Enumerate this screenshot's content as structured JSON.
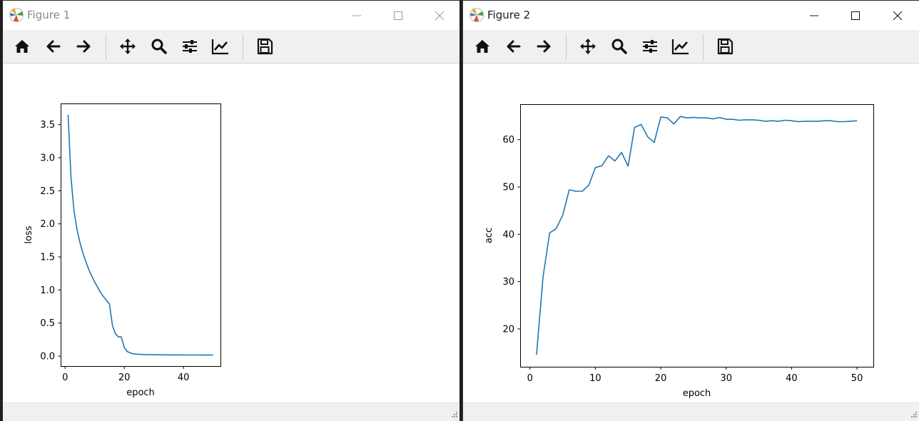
{
  "windows": [
    {
      "title": "Figure 1",
      "toolbar": [
        "home-icon",
        "back-icon",
        "forward-icon",
        "pan-icon",
        "zoom-icon",
        "configure-subplots-icon",
        "edit-axis-icon",
        "save-icon"
      ]
    },
    {
      "title": "Figure 2",
      "toolbar": [
        "home-icon",
        "back-icon",
        "forward-icon",
        "pan-icon",
        "zoom-icon",
        "configure-subplots-icon",
        "edit-axis-icon",
        "save-icon"
      ]
    }
  ],
  "colors": {
    "line": "#1f77b4",
    "toolbar_bg": "#f0f0f0",
    "title_active": "#1a1a1a",
    "title_inactive": "#8a8a8a"
  },
  "chart_data": [
    {
      "type": "line",
      "xlabel": "epoch",
      "ylabel": "loss",
      "xlim": [
        -1.5,
        52.5
      ],
      "ylim": [
        -0.15,
        3.82
      ],
      "xticks": [
        0,
        20,
        40
      ],
      "xtick_labels": [
        "0",
        "20",
        "40"
      ],
      "yticks": [
        0.0,
        0.5,
        1.0,
        1.5,
        2.0,
        2.5,
        3.0,
        3.5
      ],
      "ytick_labels": [
        "0.0",
        "0.5",
        "1.0",
        "1.5",
        "2.0",
        "2.5",
        "3.0",
        "3.5"
      ],
      "x": [
        1,
        2,
        3,
        4,
        5,
        6,
        7,
        8,
        9,
        10,
        11,
        12,
        13,
        14,
        15,
        16,
        17,
        18,
        19,
        20,
        21,
        22,
        23,
        24,
        25,
        26,
        27,
        28,
        29,
        30,
        31,
        32,
        33,
        34,
        35,
        36,
        37,
        38,
        39,
        40,
        41,
        42,
        43,
        44,
        45,
        46,
        47,
        48,
        49,
        50
      ],
      "y": [
        3.65,
        2.7,
        2.2,
        1.92,
        1.72,
        1.56,
        1.43,
        1.31,
        1.21,
        1.12,
        1.04,
        0.96,
        0.9,
        0.84,
        0.79,
        0.46,
        0.34,
        0.29,
        0.29,
        0.13,
        0.07,
        0.05,
        0.035,
        0.03,
        0.028,
        0.026,
        0.024,
        0.023,
        0.022,
        0.021,
        0.02,
        0.02,
        0.019,
        0.019,
        0.019,
        0.018,
        0.018,
        0.018,
        0.018,
        0.017,
        0.017,
        0.017,
        0.017,
        0.017,
        0.017,
        0.016,
        0.016,
        0.016,
        0.016,
        0.016
      ]
    },
    {
      "type": "line",
      "xlabel": "epoch",
      "ylabel": "acc",
      "xlim": [
        -1.5,
        52.5
      ],
      "ylim": [
        12.0,
        67.5
      ],
      "xticks": [
        0,
        10,
        20,
        30,
        40,
        50
      ],
      "xtick_labels": [
        "0",
        "10",
        "20",
        "30",
        "40",
        "50"
      ],
      "yticks": [
        20,
        30,
        40,
        50,
        60
      ],
      "ytick_labels": [
        "20",
        "30",
        "40",
        "50",
        "60"
      ],
      "x": [
        1,
        2,
        3,
        4,
        5,
        6,
        7,
        8,
        9,
        10,
        11,
        12,
        13,
        14,
        15,
        16,
        17,
        18,
        19,
        20,
        21,
        22,
        23,
        24,
        25,
        26,
        27,
        28,
        29,
        30,
        31,
        32,
        33,
        34,
        35,
        36,
        37,
        38,
        39,
        40,
        41,
        42,
        43,
        44,
        45,
        46,
        47,
        48,
        49,
        50
      ],
      "y": [
        14.5,
        31.0,
        40.3,
        41.2,
        44.0,
        49.4,
        49.1,
        49.1,
        50.4,
        54.1,
        54.5,
        56.6,
        55.5,
        57.3,
        54.4,
        62.6,
        63.2,
        60.6,
        59.4,
        64.8,
        64.6,
        63.3,
        64.9,
        64.6,
        64.7,
        64.6,
        64.6,
        64.4,
        64.7,
        64.3,
        64.3,
        64.1,
        64.2,
        64.2,
        64.1,
        63.9,
        64.0,
        63.9,
        64.1,
        64.0,
        63.8,
        63.9,
        63.9,
        63.9,
        64.0,
        64.0,
        63.8,
        63.8,
        63.9,
        64.0
      ]
    }
  ]
}
